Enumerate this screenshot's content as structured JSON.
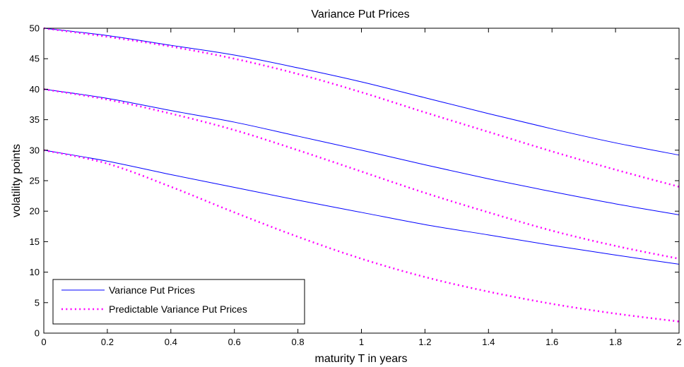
{
  "chart_data": {
    "type": "line",
    "title": "Variance Put Prices",
    "xlabel": "maturity T in years",
    "ylabel": "volatility points",
    "xlim": [
      0,
      2
    ],
    "ylim": [
      0,
      50
    ],
    "xticks": [
      0,
      0.2,
      0.4,
      0.6,
      0.8,
      1,
      1.2,
      1.4,
      1.6,
      1.8,
      2
    ],
    "xtick_labels": [
      "0",
      "0.2",
      "0.4",
      "0.6",
      "0.8",
      "1",
      "1.2",
      "1.4",
      "1.6",
      "1.8",
      "2"
    ],
    "yticks": [
      0,
      5,
      10,
      15,
      20,
      25,
      30,
      35,
      40,
      45,
      50
    ],
    "ytick_labels": [
      "0",
      "5",
      "10",
      "15",
      "20",
      "25",
      "30",
      "35",
      "40",
      "45",
      "50"
    ],
    "grid": false,
    "legend_position": "bottom-left",
    "legend": [
      {
        "label": "Variance Put Prices",
        "color": "#0000ff",
        "style": "solid"
      },
      {
        "label": "Predictable Variance Put Prices",
        "color": "#ff00ff",
        "style": "dotted"
      }
    ],
    "x": [
      0,
      0.2,
      0.4,
      0.6,
      0.8,
      1.0,
      1.2,
      1.4,
      1.6,
      1.8,
      2.0
    ],
    "series": [
      {
        "group": "Variance Put Prices",
        "color": "#0000ff",
        "style": "solid",
        "values": [
          50.0,
          48.8,
          47.2,
          45.6,
          43.5,
          41.2,
          38.6,
          36.0,
          33.5,
          31.2,
          29.2
        ]
      },
      {
        "group": "Variance Put Prices",
        "color": "#0000ff",
        "style": "solid",
        "values": [
          40.0,
          38.5,
          36.5,
          34.6,
          32.3,
          30.0,
          27.6,
          25.3,
          23.2,
          21.2,
          19.4
        ]
      },
      {
        "group": "Variance Put Prices",
        "color": "#0000ff",
        "style": "solid",
        "values": [
          30.0,
          28.2,
          26.0,
          23.9,
          21.8,
          19.8,
          17.8,
          16.1,
          14.4,
          12.8,
          11.3
        ]
      },
      {
        "group": "Predictable Variance Put Prices",
        "color": "#ff00ff",
        "style": "dotted",
        "values": [
          50.0,
          48.6,
          47.0,
          45.0,
          42.5,
          39.5,
          36.2,
          33.0,
          29.8,
          26.8,
          24.0
        ]
      },
      {
        "group": "Predictable Variance Put Prices",
        "color": "#ff00ff",
        "style": "dotted",
        "values": [
          40.0,
          38.3,
          36.0,
          33.3,
          30.0,
          26.5,
          23.0,
          19.8,
          16.8,
          14.3,
          12.2
        ]
      },
      {
        "group": "Predictable Variance Put Prices",
        "color": "#ff00ff",
        "style": "dotted",
        "values": [
          30.0,
          27.8,
          24.0,
          19.8,
          15.8,
          12.2,
          9.2,
          6.8,
          4.8,
          3.2,
          1.9
        ]
      }
    ]
  }
}
